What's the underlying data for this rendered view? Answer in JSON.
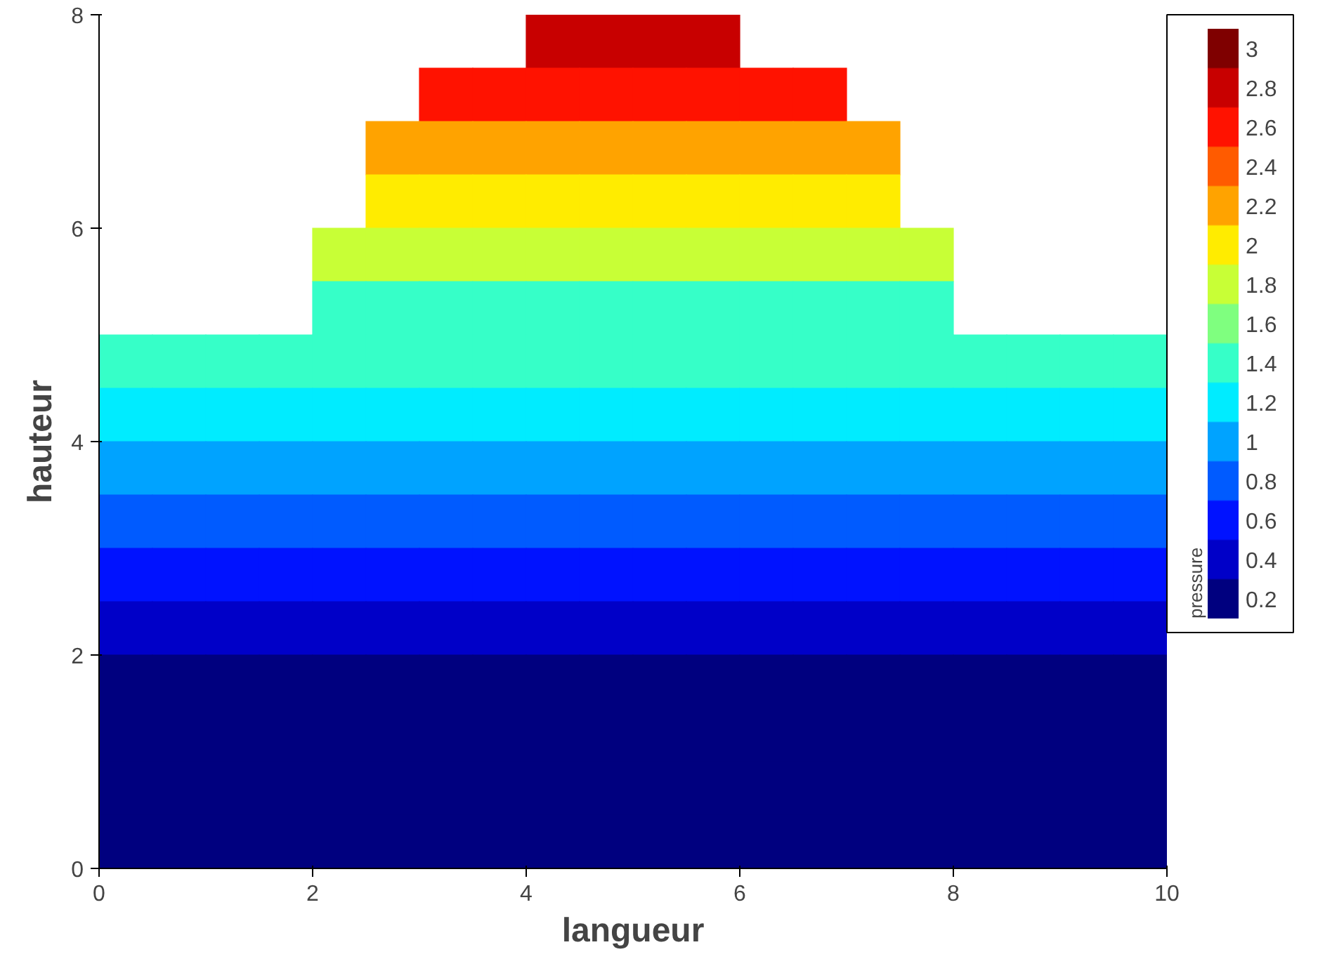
{
  "chart_data": {
    "type": "scatter",
    "marker": "square",
    "xlabel": "langueur",
    "ylabel": "hauteur",
    "clabel": "pressure",
    "series": [
      {
        "x": [
          4.25,
          4.75,
          5.25,
          5.75
        ],
        "values": [
          7.75,
          7.75,
          7.75,
          7.75
        ],
        "cvalues": [
          2.9,
          2.9,
          2.9,
          2.9
        ]
      },
      {
        "x": [
          3.25,
          3.75,
          4.25,
          4.75,
          5.25,
          5.75,
          6.25,
          6.75
        ],
        "values": [
          7.25,
          7.25,
          7.25,
          7.25,
          7.25,
          7.25,
          7.25,
          7.25
        ],
        "cvalues": [
          2.6,
          2.6,
          2.6,
          2.6,
          2.6,
          2.6,
          2.6,
          2.6
        ]
      },
      {
        "x": [
          2.75,
          3.25,
          3.75,
          4.25,
          4.75,
          5.25,
          5.75,
          6.25,
          6.75,
          7.25
        ],
        "values": [
          6.75,
          6.75,
          6.75,
          6.75,
          6.75,
          6.75,
          6.75,
          6.75,
          6.75,
          6.75
        ],
        "cvalues": [
          2.3,
          2.3,
          2.3,
          2.3,
          2.3,
          2.3,
          2.3,
          2.3,
          2.3,
          2.3
        ]
      },
      {
        "x": [
          2.75,
          3.25,
          3.75,
          4.25,
          4.75,
          5.25,
          5.75,
          6.25,
          6.75,
          7.25
        ],
        "values": [
          6.25,
          6.25,
          6.25,
          6.25,
          6.25,
          6.25,
          6.25,
          6.25,
          6.25,
          6.25
        ],
        "cvalues": [
          2.0,
          2.0,
          2.0,
          2.0,
          2.0,
          2.0,
          2.0,
          2.0,
          2.0,
          2.0
        ]
      },
      {
        "x": [
          2.25,
          2.75,
          3.25,
          3.75,
          4.25,
          4.75,
          5.25,
          5.75,
          6.25,
          6.75,
          7.25,
          7.75
        ],
        "values": [
          5.75,
          5.75,
          5.75,
          5.75,
          5.75,
          5.75,
          5.75,
          5.75,
          5.75,
          5.75,
          5.75,
          5.75
        ],
        "cvalues": [
          1.8,
          1.8,
          1.8,
          1.8,
          1.8,
          1.8,
          1.8,
          1.8,
          1.8,
          1.8,
          1.8,
          1.8
        ]
      },
      {
        "x": [
          2.25,
          2.75,
          3.25,
          3.75,
          4.25,
          4.75,
          5.25,
          5.75,
          6.25,
          6.75,
          7.25,
          7.75
        ],
        "values": [
          5.25,
          5.25,
          5.25,
          5.25,
          5.25,
          5.25,
          5.25,
          5.25,
          5.25,
          5.25,
          5.25,
          5.25
        ],
        "cvalues": [
          1.5,
          1.5,
          1.5,
          1.5,
          1.5,
          1.5,
          1.5,
          1.5,
          1.5,
          1.5,
          1.5,
          1.5
        ]
      },
      {
        "x": [
          0.25,
          0.75,
          1.25,
          1.75,
          2.25,
          2.75,
          3.25,
          3.75,
          4.25,
          4.75,
          5.25,
          5.75,
          6.25,
          6.75,
          7.25,
          7.75,
          8.25,
          8.75,
          9.25,
          9.75
        ],
        "values": [
          4.75,
          4.75,
          4.75,
          4.75,
          4.75,
          4.75,
          4.75,
          4.75,
          4.75,
          4.75,
          4.75,
          4.75,
          4.75,
          4.75,
          4.75,
          4.75,
          4.75,
          4.75,
          4.75,
          4.75
        ],
        "cvalues": [
          1.3,
          1.3,
          1.3,
          1.3,
          1.3,
          1.3,
          1.3,
          1.3,
          1.3,
          1.3,
          1.3,
          1.3,
          1.3,
          1.3,
          1.3,
          1.3,
          1.3,
          1.3,
          1.3,
          1.3
        ]
      },
      {
        "x": [
          0.25,
          0.75,
          1.25,
          1.75,
          2.25,
          2.75,
          3.25,
          3.75,
          4.25,
          4.75,
          5.25,
          5.75,
          6.25,
          6.75,
          7.25,
          7.75,
          8.25,
          8.75,
          9.25,
          9.75
        ],
        "values": [
          4.25,
          4.25,
          4.25,
          4.25,
          4.25,
          4.25,
          4.25,
          4.25,
          4.25,
          4.25,
          4.25,
          4.25,
          4.25,
          4.25,
          4.25,
          4.25,
          4.25,
          4.25,
          4.25,
          4.25
        ],
        "cvalues": [
          1.2,
          1.2,
          1.2,
          1.2,
          1.2,
          1.2,
          1.2,
          1.2,
          1.2,
          1.2,
          1.2,
          1.2,
          1.2,
          1.2,
          1.2,
          1.2,
          1.2,
          1.2,
          1.2,
          1.2
        ]
      },
      {
        "x": [
          0.25,
          0.75,
          1.25,
          1.75,
          2.25,
          2.75,
          3.25,
          3.75,
          4.25,
          4.75,
          5.25,
          5.75,
          6.25,
          6.75,
          7.25,
          7.75,
          8.25,
          8.75,
          9.25,
          9.75
        ],
        "values": [
          3.75,
          3.75,
          3.75,
          3.75,
          3.75,
          3.75,
          3.75,
          3.75,
          3.75,
          3.75,
          3.75,
          3.75,
          3.75,
          3.75,
          3.75,
          3.75,
          3.75,
          3.75,
          3.75,
          3.75
        ],
        "cvalues": [
          1.0,
          1.0,
          1.0,
          1.0,
          1.0,
          1.0,
          1.0,
          1.0,
          1.0,
          1.0,
          1.0,
          1.0,
          1.0,
          1.0,
          1.0,
          1.0,
          1.0,
          1.0,
          1.0,
          1.0
        ]
      },
      {
        "x": [
          0.25,
          0.75,
          1.25,
          1.75,
          2.25,
          2.75,
          3.25,
          3.75,
          4.25,
          4.75,
          5.25,
          5.75,
          6.25,
          6.75,
          7.25,
          7.75,
          8.25,
          8.75,
          9.25,
          9.75
        ],
        "values": [
          3.25,
          3.25,
          3.25,
          3.25,
          3.25,
          3.25,
          3.25,
          3.25,
          3.25,
          3.25,
          3.25,
          3.25,
          3.25,
          3.25,
          3.25,
          3.25,
          3.25,
          3.25,
          3.25,
          3.25
        ],
        "cvalues": [
          0.8,
          0.8,
          0.8,
          0.8,
          0.8,
          0.8,
          0.8,
          0.8,
          0.8,
          0.8,
          0.8,
          0.8,
          0.8,
          0.8,
          0.8,
          0.8,
          0.8,
          0.8,
          0.8,
          0.8
        ]
      },
      {
        "x": [
          0.25,
          0.75,
          1.25,
          1.75,
          2.25,
          2.75,
          3.25,
          3.75,
          4.25,
          4.75,
          5.25,
          5.75,
          6.25,
          6.75,
          7.25,
          7.75,
          8.25,
          8.75,
          9.25,
          9.75
        ],
        "values": [
          2.75,
          2.75,
          2.75,
          2.75,
          2.75,
          2.75,
          2.75,
          2.75,
          2.75,
          2.75,
          2.75,
          2.75,
          2.75,
          2.75,
          2.75,
          2.75,
          2.75,
          2.75,
          2.75,
          2.75
        ],
        "cvalues": [
          0.6,
          0.6,
          0.6,
          0.6,
          0.6,
          0.6,
          0.6,
          0.6,
          0.6,
          0.6,
          0.6,
          0.6,
          0.6,
          0.6,
          0.6,
          0.6,
          0.6,
          0.6,
          0.6,
          0.6
        ]
      },
      {
        "x": [
          0.25,
          0.75,
          1.25,
          1.75,
          2.25,
          2.75,
          3.25,
          3.75,
          4.25,
          4.75,
          5.25,
          5.75,
          6.25,
          6.75,
          7.25,
          7.75,
          8.25,
          8.75,
          9.25,
          9.75
        ],
        "values": [
          2.25,
          2.25,
          2.25,
          2.25,
          2.25,
          2.25,
          2.25,
          2.25,
          2.25,
          2.25,
          2.25,
          2.25,
          2.25,
          2.25,
          2.25,
          2.25,
          2.25,
          2.25,
          2.25,
          2.25
        ],
        "cvalues": [
          0.45,
          0.45,
          0.45,
          0.45,
          0.45,
          0.45,
          0.45,
          0.45,
          0.45,
          0.45,
          0.45,
          0.45,
          0.45,
          0.45,
          0.45,
          0.45,
          0.45,
          0.45,
          0.45,
          0.45
        ]
      },
      {
        "x": [
          0.25,
          0.75,
          1.25,
          1.75,
          2.25,
          2.75,
          3.25,
          3.75,
          4.25,
          4.75,
          5.25,
          5.75,
          6.25,
          6.75,
          7.25,
          7.75,
          8.25,
          8.75,
          9.25,
          9.75
        ],
        "values": [
          1.75,
          1.75,
          1.75,
          1.75,
          1.75,
          1.75,
          1.75,
          1.75,
          1.75,
          1.75,
          1.75,
          1.75,
          1.75,
          1.75,
          1.75,
          1.75,
          1.75,
          1.75,
          1.75,
          1.75
        ],
        "cvalues": [
          0.3,
          0.3,
          0.3,
          0.3,
          0.3,
          0.3,
          0.3,
          0.3,
          0.3,
          0.3,
          0.3,
          0.3,
          0.3,
          0.3,
          0.3,
          0.3,
          0.3,
          0.3,
          0.3,
          0.3
        ]
      },
      {
        "x": [
          0.25,
          0.75,
          1.25,
          1.75,
          2.25,
          2.75,
          3.25,
          3.75,
          4.25,
          4.75,
          5.25,
          5.75,
          6.25,
          6.75,
          7.25,
          7.75,
          8.25,
          8.75,
          9.25,
          9.75
        ],
        "values": [
          1.25,
          1.25,
          1.25,
          1.25,
          1.25,
          1.25,
          1.25,
          1.25,
          1.25,
          1.25,
          1.25,
          1.25,
          1.25,
          1.25,
          1.25,
          1.25,
          1.25,
          1.25,
          1.25,
          1.25
        ],
        "cvalues": [
          0.15,
          0.15,
          0.15,
          0.15,
          0.15,
          0.15,
          0.15,
          0.15,
          0.15,
          0.15,
          0.15,
          0.15,
          0.15,
          0.15,
          0.15,
          0.15,
          0.15,
          0.15,
          0.15,
          0.15
        ]
      },
      {
        "x": [
          0.25,
          0.75,
          1.25,
          1.75,
          2.25,
          2.75,
          3.25,
          3.75,
          4.25,
          4.75,
          5.25,
          5.75,
          6.25,
          6.75,
          7.25,
          7.75,
          8.25,
          8.75,
          9.25,
          9.75
        ],
        "values": [
          0.75,
          0.75,
          0.75,
          0.75,
          0.75,
          0.75,
          0.75,
          0.75,
          0.75,
          0.75,
          0.75,
          0.75,
          0.75,
          0.75,
          0.75,
          0.75,
          0.75,
          0.75,
          0.75,
          0.75
        ],
        "cvalues": [
          0.1,
          0.1,
          0.1,
          0.1,
          0.1,
          0.1,
          0.1,
          0.1,
          0.1,
          0.1,
          0.1,
          0.1,
          0.1,
          0.1,
          0.1,
          0.1,
          0.1,
          0.1,
          0.1,
          0.1
        ]
      },
      {
        "x": [
          0.25,
          0.75,
          1.25,
          1.75,
          2.25,
          2.75,
          3.25,
          3.75,
          4.25,
          4.75,
          5.25,
          5.75,
          6.25,
          6.75,
          7.25,
          7.75,
          8.25,
          8.75,
          9.25,
          9.75
        ],
        "values": [
          0.25,
          0.25,
          0.25,
          0.25,
          0.25,
          0.25,
          0.25,
          0.25,
          0.25,
          0.25,
          0.25,
          0.25,
          0.25,
          0.25,
          0.25,
          0.25,
          0.25,
          0.25,
          0.25,
          0.25
        ],
        "cvalues": [
          0.1,
          0.1,
          0.1,
          0.1,
          0.1,
          0.1,
          0.1,
          0.1,
          0.1,
          0.1,
          0.1,
          0.1,
          0.1,
          0.1,
          0.1,
          0.1,
          0.1,
          0.1,
          0.1,
          0.1
        ]
      }
    ],
    "xlim": [
      0,
      10
    ],
    "ylim": [
      0,
      8
    ],
    "xticks": [
      0,
      2,
      4,
      6,
      8,
      10
    ],
    "yticks": [
      0,
      2,
      4,
      6,
      8
    ],
    "clim": [
      0.1,
      3.1
    ],
    "cticks": [
      0.2,
      0.4,
      0.6,
      0.8,
      1,
      1.2,
      1.4,
      1.6,
      1.8,
      2,
      2.2,
      2.4,
      2.6,
      2.8,
      3
    ],
    "grid": false
  }
}
